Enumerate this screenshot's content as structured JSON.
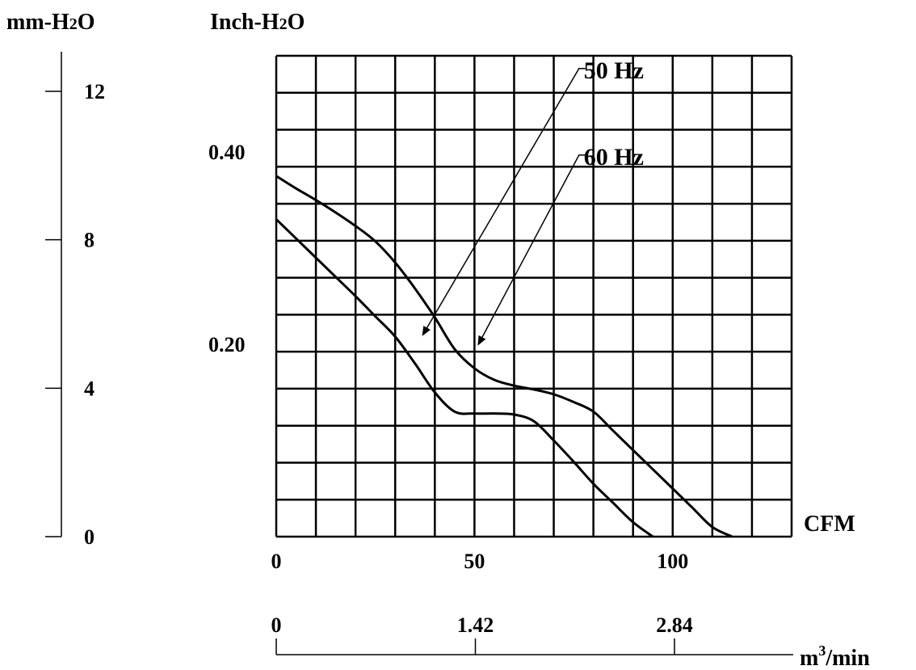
{
  "chart_data": {
    "type": "line",
    "left_unit_label": "mm-H2O",
    "right_unit_label": "Inch-H2O",
    "x_label": "CFM",
    "x2_label": "m3/min",
    "xlim": [
      0,
      130
    ],
    "ylim": [
      0,
      0.5
    ],
    "grid": true,
    "x_ticks": [
      "0",
      "50",
      "100"
    ],
    "x_tick_values": [
      0,
      50,
      100
    ],
    "x2_ticks": [
      "0",
      "1.42",
      "2.84"
    ],
    "x2_tick_values": [
      0,
      1.42,
      2.84
    ],
    "y_ticks": [
      "0.20",
      "0.40"
    ],
    "y_tick_values": [
      0.2,
      0.4
    ],
    "mm_ticks": [
      "0",
      "4",
      "8",
      "12"
    ],
    "mm_tick_values": [
      0,
      4,
      8,
      12
    ],
    "series": [
      {
        "name": "60 Hz",
        "x": [
          0,
          5,
          10,
          15,
          20,
          25,
          30,
          35,
          40,
          45,
          50,
          55,
          60,
          65,
          70,
          75,
          80,
          85,
          90,
          95,
          100,
          105,
          110,
          115
        ],
        "y": [
          0.375,
          0.362,
          0.35,
          0.337,
          0.323,
          0.307,
          0.285,
          0.258,
          0.228,
          0.195,
          0.175,
          0.163,
          0.157,
          0.153,
          0.148,
          0.14,
          0.13,
          0.11,
          0.09,
          0.07,
          0.05,
          0.03,
          0.01,
          0.0
        ]
      },
      {
        "name": "50 Hz",
        "x": [
          0,
          5,
          10,
          15,
          20,
          25,
          30,
          35,
          40,
          45,
          50,
          55,
          60,
          65,
          70,
          75,
          80,
          85,
          90,
          95
        ],
        "y": [
          0.33,
          0.31,
          0.29,
          0.27,
          0.25,
          0.229,
          0.208,
          0.18,
          0.15,
          0.13,
          0.128,
          0.128,
          0.127,
          0.12,
          0.1,
          0.078,
          0.055,
          0.035,
          0.015,
          0.0
        ]
      }
    ],
    "annotations": [
      {
        "text": "50 Hz",
        "series": "50 Hz",
        "target": [
          37,
          0.21
        ],
        "label_at": [
          78,
          0.48
        ]
      },
      {
        "text": "60 Hz",
        "series": "60 Hz",
        "target": [
          51,
          0.2
        ],
        "label_at": [
          78,
          0.39
        ]
      }
    ]
  }
}
